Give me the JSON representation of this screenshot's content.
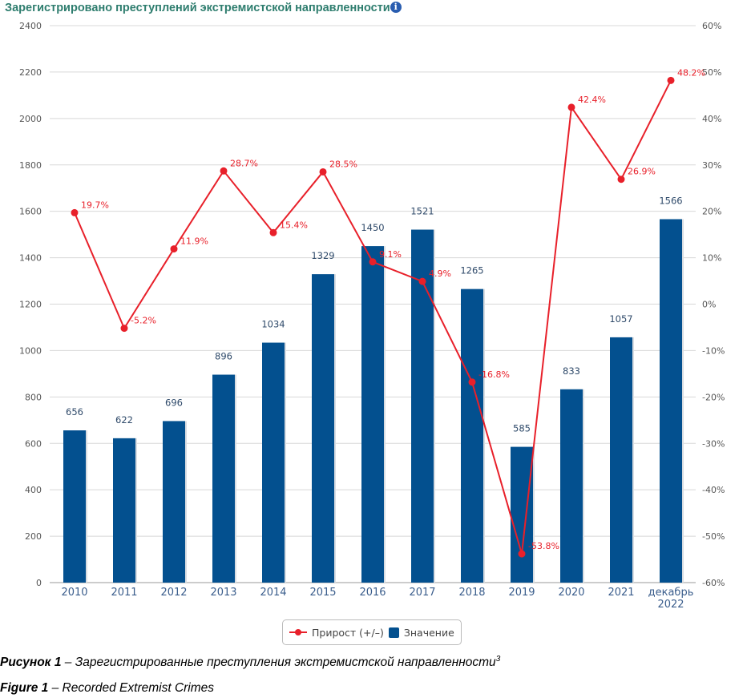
{
  "chart_data": {
    "type": "bar+line",
    "title": "Зарегистрировано преступлений экстремистской направленности",
    "categories": [
      "2010",
      "2011",
      "2012",
      "2013",
      "2014",
      "2015",
      "2016",
      "2017",
      "2018",
      "2019",
      "2020",
      "2021",
      "декабрь 2022"
    ],
    "series": [
      {
        "name": "Значение",
        "type": "bar",
        "axis": "left",
        "color": "#03508f",
        "values": [
          656,
          622,
          696,
          896,
          1034,
          1329,
          1450,
          1521,
          1265,
          585,
          833,
          1057,
          1566
        ]
      },
      {
        "name": "Прирост (+/-)",
        "type": "line",
        "axis": "right",
        "color": "#e8202a",
        "unit": "%",
        "values": [
          19.7,
          -5.2,
          11.9,
          28.7,
          15.4,
          28.5,
          9.1,
          4.9,
          -16.8,
          -53.8,
          42.4,
          26.9,
          48.2
        ]
      }
    ],
    "y_left": {
      "min": 0,
      "max": 2400,
      "step": 200,
      "ticks": [
        "0",
        "200",
        "400",
        "600",
        "800",
        "1000",
        "1200",
        "1400",
        "1600",
        "1800",
        "2000",
        "2200",
        "2400"
      ]
    },
    "y_right": {
      "min": -60,
      "max": 60,
      "step": 10,
      "ticks": [
        "-60%",
        "-50%",
        "-40%",
        "-30%",
        "-20%",
        "-10%",
        "0%",
        "10%",
        "20%",
        "30%",
        "40%",
        "50%",
        "60%"
      ]
    },
    "grid": true,
    "legend_position": "bottom-center"
  },
  "legend": {
    "line": "Прирост (+/–)",
    "bar": "Значение"
  },
  "info_icon": "i",
  "caption_ru": {
    "label": "Рисунок 1",
    "text": " – Зарегистрированные преступления экстремистской направленности",
    "sup": "3"
  },
  "caption_en": {
    "label": "Figure 1",
    "text": " – Recorded Extremist Crimes"
  }
}
